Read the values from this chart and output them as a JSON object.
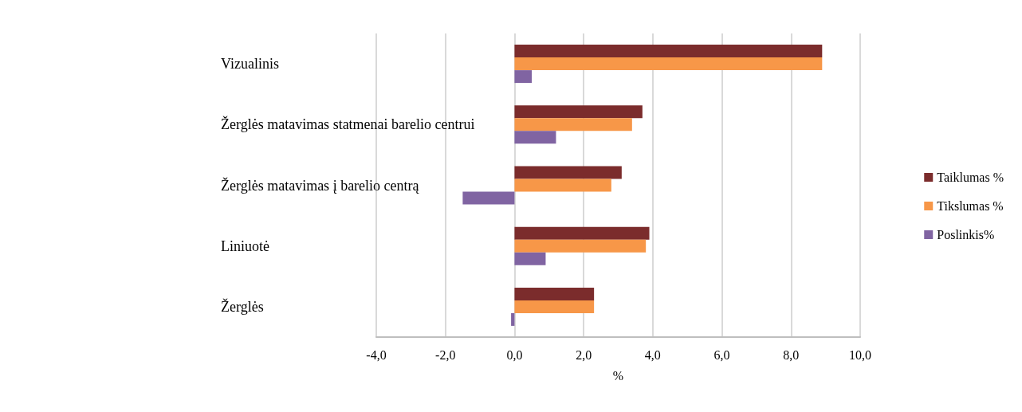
{
  "chart_data": {
    "type": "bar",
    "orientation": "horizontal",
    "xlabel": "%",
    "categories": [
      "Vizualinis",
      "Žerglės matavimas statmenai barelio centrui",
      "Žerglės matavimas į barelio centrą",
      "Liniuotė",
      "Žerglės"
    ],
    "series": [
      {
        "name": "Taiklumas %",
        "color": "#7b2c2c",
        "values": [
          8.9,
          3.7,
          3.1,
          3.9,
          2.3
        ]
      },
      {
        "name": "Tikslumas %",
        "color": "#f79748",
        "values": [
          8.9,
          3.4,
          2.8,
          3.8,
          2.3
        ]
      },
      {
        "name": "Poslinkis%",
        "color": "#8064a2",
        "values": [
          0.5,
          1.2,
          -1.5,
          0.9,
          -0.1
        ]
      }
    ],
    "xlim": [
      -4,
      10
    ],
    "xticks": [
      {
        "value": -4,
        "label": "-4,0"
      },
      {
        "value": -2,
        "label": "-2,0"
      },
      {
        "value": 0,
        "label": "0,0"
      },
      {
        "value": 2,
        "label": "2,0"
      },
      {
        "value": 4,
        "label": "4,0"
      },
      {
        "value": 6,
        "label": "6,0"
      },
      {
        "value": 8,
        "label": "8,0"
      },
      {
        "value": 10,
        "label": "10,0"
      }
    ],
    "grid": "x",
    "legend": "right"
  }
}
